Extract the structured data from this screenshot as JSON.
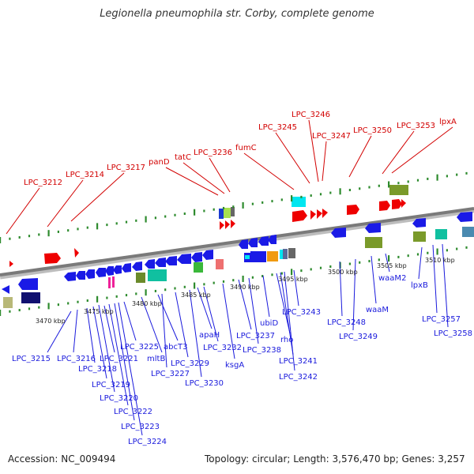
{
  "title": "Legionella pneumophila str. Corby, complete genome",
  "footer": {
    "accession": "Accession: NC_009494",
    "summary": "Topology: circular; Length: 3,576,470 bp; Genes: 3,257"
  },
  "colors": {
    "forward_label": "#d20000",
    "reverse_label": "#1a1adc",
    "backbone": "#888888",
    "ticks": "#2e8b2e"
  },
  "forward_labels": [
    "LPC_3212",
    "LPC_3214",
    "LPC_3217",
    "panD",
    "tatC",
    "LPC_3236",
    "fumC",
    "LPC_3245",
    "LPC_3246",
    "LPC_3247",
    "LPC_3250",
    "LPC_3253",
    "lpxA"
  ],
  "reverse_labels": [
    "LPC_3215",
    "LPC_3216",
    "LPC_3218",
    "LPC_3219",
    "LPC_3220",
    "LPC_3221",
    "LPC_3222",
    "LPC_3223",
    "LPC_3224",
    "LPC_3225",
    "mltB",
    "abcT3",
    "LPC_3227",
    "LPC_3229",
    "LPC_3230",
    "apaH",
    "LPC_3232",
    "ksgA",
    "LPC_3237",
    "LPC_3238",
    "ubiD",
    "rho",
    "LPC_3241",
    "LPC_3242",
    "LPC_3243",
    "LPC_3248",
    "LPC_3249",
    "waaM",
    "waaM2",
    "lpxB",
    "LPC_3257",
    "LPC_3258"
  ],
  "scale_labels": [
    "3470 kbp",
    "3475 kbp",
    "3480 kbp",
    "3485 kbp",
    "3490 kbp",
    "3495 kbp",
    "3500 kbp",
    "3505 kbp",
    "3510 kbp"
  ]
}
